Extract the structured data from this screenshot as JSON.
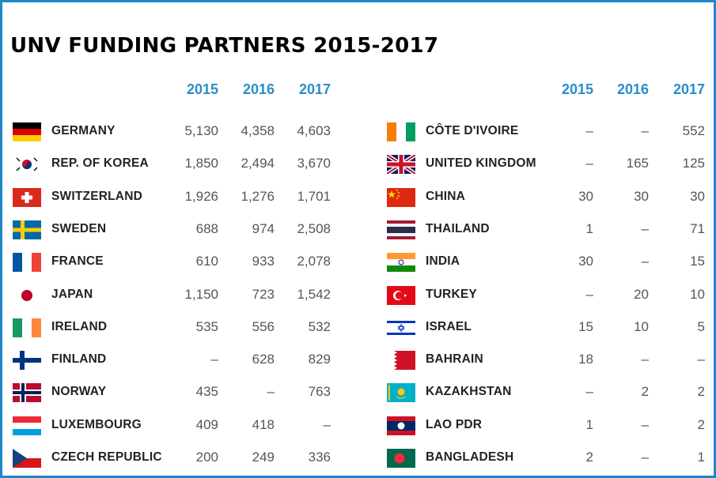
{
  "chart_data": {
    "type": "table",
    "title": "UNV FUNDING PARTNERS 2015-2017",
    "years": [
      "2015",
      "2016",
      "2017"
    ],
    "columns": [
      {
        "rows": [
          {
            "country": "GERMANY",
            "flag": "germany",
            "values": [
              "5,130",
              "4,358",
              "4,603"
            ]
          },
          {
            "country": "REP. OF KOREA",
            "flag": "korea",
            "values": [
              "1,850",
              "2,494",
              "3,670"
            ]
          },
          {
            "country": "SWITZERLAND",
            "flag": "switzerland",
            "values": [
              "1,926",
              "1,276",
              "1,701"
            ]
          },
          {
            "country": "SWEDEN",
            "flag": "sweden",
            "values": [
              "688",
              "974",
              "2,508"
            ]
          },
          {
            "country": "FRANCE",
            "flag": "france",
            "values": [
              "610",
              "933",
              "2,078"
            ]
          },
          {
            "country": "JAPAN",
            "flag": "japan",
            "values": [
              "1,150",
              "723",
              "1,542"
            ]
          },
          {
            "country": "IRELAND",
            "flag": "ireland",
            "values": [
              "535",
              "556",
              "532"
            ]
          },
          {
            "country": "FINLAND",
            "flag": "finland",
            "values": [
              "–",
              "628",
              "829"
            ]
          },
          {
            "country": "NORWAY",
            "flag": "norway",
            "values": [
              "435",
              "–",
              "763"
            ]
          },
          {
            "country": "LUXEMBOURG",
            "flag": "luxembourg",
            "values": [
              "409",
              "418",
              "–"
            ]
          },
          {
            "country": "CZECH REPUBLIC",
            "flag": "czech",
            "values": [
              "200",
              "249",
              "336"
            ]
          }
        ]
      },
      {
        "rows": [
          {
            "country": "CÔTE D'IVOIRE",
            "flag": "cote-divoire",
            "values": [
              "–",
              "–",
              "552"
            ]
          },
          {
            "country": "UNITED KINGDOM",
            "flag": "united-kingdom",
            "values": [
              "–",
              "165",
              "125"
            ]
          },
          {
            "country": "CHINA",
            "flag": "china",
            "values": [
              "30",
              "30",
              "30"
            ]
          },
          {
            "country": "THAILAND",
            "flag": "thailand",
            "values": [
              "1",
              "–",
              "71"
            ]
          },
          {
            "country": "INDIA",
            "flag": "india",
            "values": [
              "30",
              "–",
              "15"
            ]
          },
          {
            "country": "TURKEY",
            "flag": "turkey",
            "values": [
              "–",
              "20",
              "10"
            ]
          },
          {
            "country": "ISRAEL",
            "flag": "israel",
            "values": [
              "15",
              "10",
              "5"
            ]
          },
          {
            "country": "BAHRAIN",
            "flag": "bahrain",
            "values": [
              "18",
              "–",
              "–"
            ]
          },
          {
            "country": "KAZAKHSTAN",
            "flag": "kazakhstan",
            "values": [
              "–",
              "2",
              "2"
            ]
          },
          {
            "country": "LAO PDR",
            "flag": "laos",
            "values": [
              "1",
              "–",
              "2"
            ]
          },
          {
            "country": "BANGLADESH",
            "flag": "bangladesh",
            "values": [
              "2",
              "–",
              "1"
            ]
          }
        ]
      }
    ]
  },
  "colors": {
    "frame": "#1f86c8",
    "year_header": "#2a8ec9",
    "country_text": "#222222",
    "value_text": "#555555"
  }
}
